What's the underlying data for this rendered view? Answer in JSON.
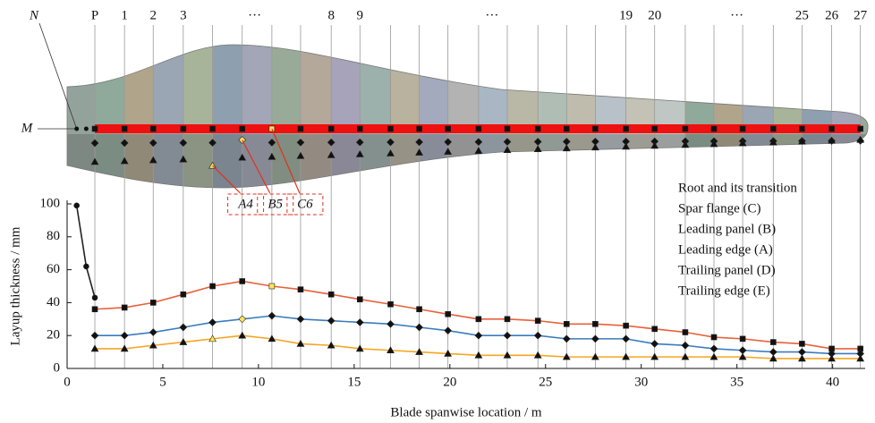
{
  "chart_data": {
    "type": "line",
    "xlabel": "Blade spanwise location / m",
    "ylabel": "Layup thickness / mm",
    "xlim": [
      0,
      41.7
    ],
    "ylim": [
      0,
      100
    ],
    "xticks": [
      0,
      5,
      10,
      15,
      20,
      25,
      30,
      35,
      40
    ],
    "yticks": [
      0,
      20,
      40,
      60,
      80,
      100
    ],
    "x": [
      1.45,
      3.0,
      4.5,
      6.07,
      7.6,
      9.15,
      10.7,
      12.2,
      13.8,
      15.3,
      16.9,
      18.4,
      19.9,
      21.5,
      23.0,
      24.6,
      26.1,
      27.6,
      29.2,
      30.7,
      32.3,
      33.8,
      35.3,
      36.9,
      38.4,
      39.95,
      41.45
    ],
    "highlight_color": "#ffe45c",
    "series": [
      {
        "name": "Root and its transition",
        "color": "#222222",
        "marker": "circle",
        "x": [
          0.5,
          1.0,
          1.45
        ],
        "values": [
          99,
          62,
          43
        ]
      },
      {
        "name": "Spar flange (C)",
        "color": "#e8603c",
        "marker": "square",
        "highlight": 6,
        "callout": "C6",
        "values": [
          36,
          37,
          40,
          45,
          50,
          53,
          50,
          48,
          45,
          42,
          39,
          36,
          33,
          30,
          30,
          29,
          27,
          27,
          26,
          24,
          22,
          19,
          18,
          16,
          15,
          12,
          12
        ]
      },
      {
        "name": "Leading panel (B)",
        "color": "#3b7bbf",
        "marker": "diamond",
        "highlight": 5,
        "callout": "B5",
        "values": [
          20,
          20,
          22,
          25,
          28,
          30,
          32,
          30,
          29,
          28,
          27,
          25,
          23,
          20,
          20,
          20,
          18,
          18,
          18,
          15,
          14,
          12,
          11,
          10,
          10,
          9,
          9
        ]
      },
      {
        "name": "Leading edge (A)",
        "color": "#f5a623",
        "marker": "triangle",
        "highlight": 4,
        "callout": "A4",
        "values": [
          12,
          12,
          14,
          16,
          18,
          20,
          18,
          15,
          14,
          12,
          11,
          10,
          9,
          8,
          8,
          8,
          7,
          7,
          7,
          7,
          7,
          7,
          7,
          6,
          6,
          6,
          6
        ]
      }
    ],
    "legend_only": [
      "Trailing panel (D)",
      "Trailing edge (E)"
    ]
  },
  "blade": {
    "root_label": "N",
    "axis_label": "M",
    "stations": [
      {
        "label": "P",
        "x": 1.45
      },
      {
        "label": "1",
        "x": 3.0
      },
      {
        "label": "2",
        "x": 4.5
      },
      {
        "label": "3",
        "x": 6.07
      },
      {
        "label": "···",
        "x": 9.8
      },
      {
        "label": "8",
        "x": 13.8
      },
      {
        "label": "9",
        "x": 15.3
      },
      {
        "label": "···",
        "x": 22.2
      },
      {
        "label": "19",
        "x": 29.2
      },
      {
        "label": "20",
        "x": 30.7
      },
      {
        "label": "···",
        "x": 35.0
      },
      {
        "label": "25",
        "x": 38.4
      },
      {
        "label": "26",
        "x": 39.95
      },
      {
        "label": "27",
        "x": 41.45
      }
    ]
  }
}
